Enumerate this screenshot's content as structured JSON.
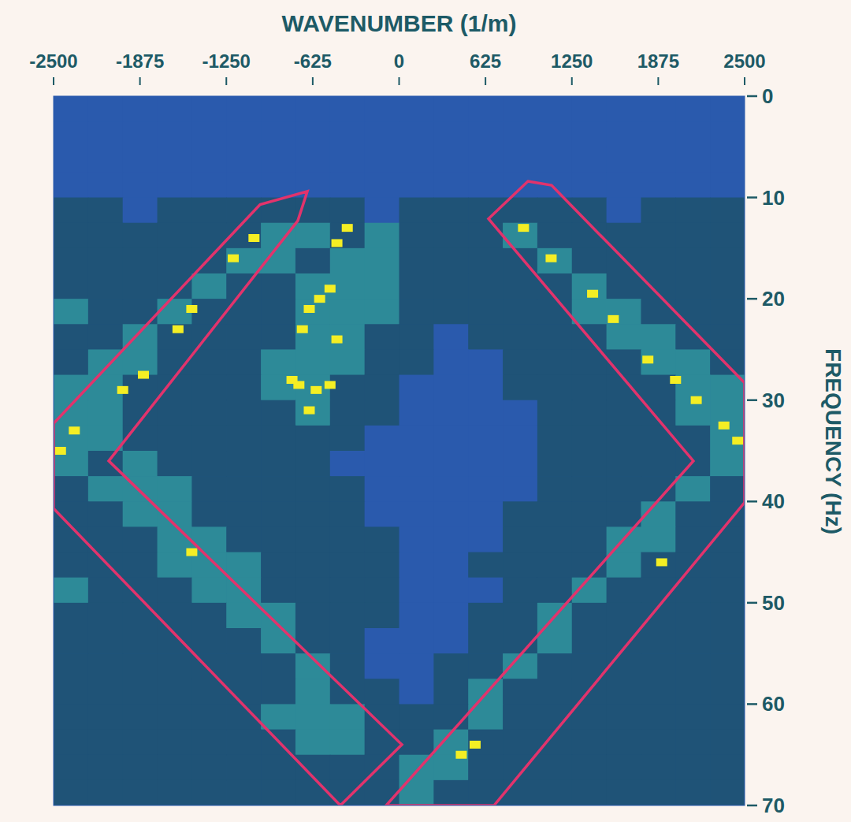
{
  "chart_data": {
    "type": "heatmap",
    "x_label": "WAVENUMBER (1/m)",
    "y_label": "FREQUENCY (Hz)",
    "xlim": [
      -2500,
      2500
    ],
    "ylim": [
      0,
      70
    ],
    "xticks": [
      -2500,
      -1875,
      -1250,
      -625,
      0,
      625,
      1250,
      1875,
      2500
    ],
    "yticks": [
      0,
      10,
      20,
      30,
      40,
      50,
      60,
      70
    ],
    "cells": [
      [
        0,
        0,
        0,
        0,
        0,
        0,
        0,
        0,
        0,
        0,
        0,
        0,
        0,
        0,
        0,
        0,
        0,
        0,
        0,
        0
      ],
      [
        0,
        0,
        0,
        0,
        0,
        0,
        0,
        0,
        0,
        0,
        0,
        0,
        0,
        0,
        0,
        0,
        0,
        0,
        0,
        0
      ],
      [
        0,
        0,
        0,
        0,
        0,
        0,
        0,
        0,
        0,
        0,
        0,
        0,
        0,
        0,
        0,
        0,
        0,
        0,
        0,
        0
      ],
      [
        0,
        0,
        0,
        0,
        0,
        0,
        0,
        0,
        0,
        0,
        0,
        0,
        0,
        0,
        0,
        0,
        0,
        0,
        0,
        0
      ],
      [
        1,
        1,
        0,
        1,
        1,
        1,
        1,
        1,
        1,
        0,
        1,
        1,
        1,
        1,
        1,
        1,
        0,
        1,
        1,
        1
      ],
      [
        1,
        1,
        1,
        1,
        1,
        1,
        2,
        2,
        1,
        2,
        1,
        1,
        1,
        2,
        1,
        1,
        1,
        1,
        1,
        1
      ],
      [
        1,
        1,
        1,
        1,
        1,
        2,
        2,
        1,
        2,
        2,
        1,
        1,
        1,
        1,
        2,
        1,
        1,
        1,
        1,
        1
      ],
      [
        1,
        1,
        1,
        1,
        2,
        1,
        1,
        2,
        2,
        2,
        1,
        1,
        1,
        1,
        1,
        2,
        1,
        1,
        1,
        1
      ],
      [
        2,
        1,
        1,
        2,
        1,
        1,
        1,
        2,
        2,
        2,
        1,
        1,
        1,
        1,
        1,
        2,
        2,
        1,
        1,
        1
      ],
      [
        1,
        1,
        2,
        1,
        1,
        1,
        1,
        2,
        2,
        1,
        1,
        0,
        1,
        1,
        1,
        1,
        2,
        2,
        1,
        1
      ],
      [
        1,
        2,
        2,
        1,
        1,
        1,
        2,
        2,
        2,
        1,
        1,
        0,
        0,
        1,
        1,
        1,
        1,
        2,
        2,
        1
      ],
      [
        2,
        2,
        1,
        1,
        1,
        1,
        2,
        2,
        1,
        1,
        0,
        0,
        0,
        1,
        1,
        1,
        1,
        1,
        2,
        2
      ],
      [
        2,
        2,
        1,
        1,
        1,
        1,
        1,
        2,
        1,
        1,
        0,
        0,
        0,
        0,
        1,
        1,
        1,
        1,
        2,
        2
      ],
      [
        2,
        2,
        1,
        1,
        1,
        1,
        1,
        1,
        1,
        0,
        0,
        0,
        0,
        0,
        1,
        1,
        1,
        1,
        1,
        2
      ],
      [
        2,
        1,
        2,
        1,
        1,
        1,
        1,
        1,
        0,
        0,
        0,
        0,
        0,
        0,
        1,
        1,
        1,
        1,
        1,
        2
      ],
      [
        1,
        2,
        2,
        2,
        1,
        1,
        1,
        1,
        1,
        0,
        0,
        0,
        0,
        0,
        1,
        1,
        1,
        1,
        2,
        1
      ],
      [
        1,
        1,
        2,
        2,
        1,
        1,
        1,
        1,
        1,
        0,
        0,
        0,
        0,
        1,
        1,
        1,
        1,
        2,
        1,
        1
      ],
      [
        1,
        1,
        1,
        2,
        2,
        1,
        1,
        1,
        1,
        1,
        0,
        0,
        0,
        1,
        1,
        1,
        2,
        2,
        1,
        1
      ],
      [
        1,
        1,
        1,
        2,
        2,
        2,
        1,
        1,
        1,
        1,
        0,
        0,
        1,
        1,
        1,
        1,
        2,
        1,
        1,
        1
      ],
      [
        2,
        1,
        1,
        1,
        2,
        2,
        1,
        1,
        1,
        1,
        0,
        0,
        0,
        1,
        1,
        2,
        1,
        1,
        1,
        1
      ],
      [
        1,
        1,
        1,
        1,
        1,
        2,
        2,
        1,
        1,
        1,
        0,
        0,
        1,
        1,
        2,
        1,
        1,
        1,
        1,
        1
      ],
      [
        1,
        1,
        1,
        1,
        1,
        1,
        2,
        1,
        1,
        0,
        0,
        0,
        1,
        1,
        2,
        1,
        1,
        1,
        1,
        1
      ],
      [
        1,
        1,
        1,
        1,
        1,
        1,
        1,
        2,
        1,
        0,
        0,
        1,
        1,
        2,
        1,
        1,
        1,
        1,
        1,
        1
      ],
      [
        1,
        1,
        1,
        1,
        1,
        1,
        1,
        2,
        1,
        1,
        0,
        1,
        2,
        1,
        1,
        1,
        1,
        1,
        1,
        1
      ],
      [
        1,
        1,
        1,
        1,
        1,
        1,
        2,
        2,
        2,
        1,
        1,
        1,
        2,
        1,
        1,
        1,
        1,
        1,
        1,
        1
      ],
      [
        1,
        1,
        1,
        1,
        1,
        1,
        1,
        2,
        2,
        1,
        1,
        2,
        1,
        1,
        1,
        1,
        1,
        1,
        1,
        1
      ],
      [
        1,
        1,
        1,
        1,
        1,
        1,
        1,
        1,
        1,
        1,
        2,
        2,
        1,
        1,
        1,
        1,
        1,
        1,
        1,
        1
      ],
      [
        1,
        1,
        1,
        1,
        1,
        1,
        1,
        1,
        1,
        1,
        2,
        1,
        1,
        1,
        1,
        1,
        1,
        1,
        1,
        1
      ]
    ],
    "peaks": [
      [
        -1050,
        14
      ],
      [
        -1200,
        16
      ],
      [
        -1500,
        21
      ],
      [
        -1600,
        23
      ],
      [
        -1850,
        27.5
      ],
      [
        -2000,
        29
      ],
      [
        -2350,
        33
      ],
      [
        -2450,
        35
      ],
      [
        900,
        13
      ],
      [
        1100,
        16
      ],
      [
        1400,
        19.5
      ],
      [
        1550,
        22
      ],
      [
        1800,
        26
      ],
      [
        2000,
        28
      ],
      [
        2150,
        30
      ],
      [
        2350,
        32.5
      ],
      [
        2450,
        34
      ],
      [
        -375,
        13
      ],
      [
        -450,
        14.5
      ],
      [
        -500,
        19
      ],
      [
        -575,
        20
      ],
      [
        -650,
        21
      ],
      [
        -700,
        23
      ],
      [
        -450,
        24
      ],
      [
        -725,
        28.5
      ],
      [
        -600,
        29
      ],
      [
        -775,
        28
      ],
      [
        -500,
        28.5
      ],
      [
        -650,
        31
      ],
      [
        -1500,
        45
      ],
      [
        1900,
        46
      ],
      [
        450,
        65
      ],
      [
        550,
        64
      ]
    ],
    "polygons": [
      [
        [
          -2500,
          32.3
        ],
        [
          -1006,
          10.7
        ],
        [
          -664,
          9.4
        ],
        [
          -733,
          12.3
        ],
        [
          -2101,
          36
        ],
        [
          20,
          64
        ],
        [
          -425,
          70
        ],
        [
          -2500,
          40.7
        ]
      ],
      [
        [
          932,
          8.4
        ],
        [
          1103,
          8.8
        ],
        [
          2500,
          28.3
        ],
        [
          2500,
          40.1
        ],
        [
          687,
          70
        ],
        [
          -94,
          70
        ],
        [
          2129,
          36
        ],
        [
          647,
          12.1
        ]
      ]
    ]
  }
}
